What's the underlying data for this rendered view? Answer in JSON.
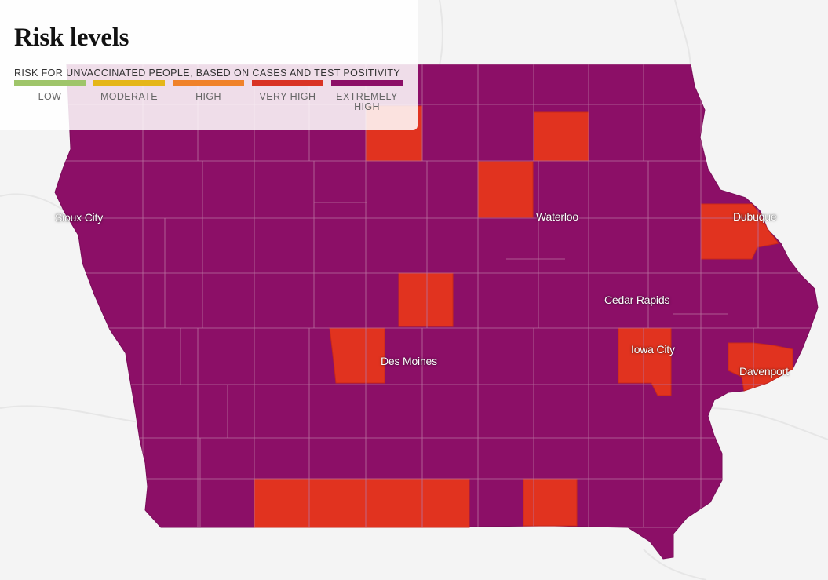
{
  "title": "Risk levels",
  "subtitle": "RISK FOR UNVACCINATED PEOPLE, BASED ON CASES AND TEST POSITIVITY",
  "legend": [
    {
      "label": "LOW",
      "color": "#9fc56a"
    },
    {
      "label": "MODERATE",
      "color": "#e5b619"
    },
    {
      "label": "HIGH",
      "color": "#f0822a"
    },
    {
      "label": "VERY HIGH",
      "color": "#d93324"
    },
    {
      "label": "EXTREMELY HIGH",
      "color": "#8c0f67"
    }
  ],
  "colors": {
    "extremely_high": "#8c0f67",
    "very_high": "#e1331f",
    "basemap": "#f4f4f4",
    "county_border": "#b9719f"
  },
  "map": {
    "state": "Iowa",
    "default_level": "extremely high",
    "very_high_counties": [
      "Winnebago area (north)",
      "Floyd area (north)",
      "Butler area (north-central)",
      "Dubuque",
      "Hamilton area (central)",
      "Polk",
      "Johnson",
      "Scott",
      "Southern tier block (Ringgold-Wayne area)",
      "Davis area (south-east)"
    ]
  },
  "cities": [
    {
      "name": "Sioux City"
    },
    {
      "name": "Waterloo"
    },
    {
      "name": "Dubuque"
    },
    {
      "name": "Cedar Rapids"
    },
    {
      "name": "Iowa City"
    },
    {
      "name": "Des Moines"
    },
    {
      "name": "Davenport"
    }
  ]
}
